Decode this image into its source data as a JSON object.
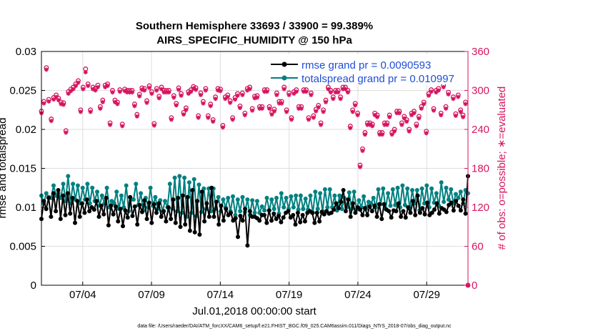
{
  "chart_data": {
    "type": "line",
    "title": "Southern Hemisphere 33693 / 33900 = 99.389%",
    "subtitle": "AIRS_SPECIFIC_HUMIDITY @ 150 hPa",
    "xlabel": "Jul.01,2018 00:00:00 start",
    "ylabel_left": "rmse and totalspread",
    "ylabel_right": "# of obs: o=possible; ∗=evaluated",
    "x_tick_labels": [
      "07/04",
      "07/09",
      "07/14",
      "07/19",
      "07/24",
      "07/29"
    ],
    "x_tick_days": [
      4,
      9,
      14,
      19,
      24,
      29
    ],
    "xlim": [
      1,
      32
    ],
    "ylim_left": [
      0,
      0.03
    ],
    "yticks_left": [
      "0",
      "0.005",
      "0.01",
      "0.015",
      "0.02",
      "0.025",
      "0.03"
    ],
    "ylim_right": [
      0,
      360
    ],
    "yticks_right": [
      "0",
      "60",
      "120",
      "180",
      "240",
      "300",
      "360"
    ],
    "grid": true,
    "legend_position": "top-right",
    "colors": {
      "rmse": "#000000",
      "totalspread": "#008080",
      "obs": "#d6145f",
      "legend_text": "#1f4ed8"
    },
    "series": [
      {
        "name": "rmse grand pr = 0.0090593",
        "axis": "left",
        "values": [
          0.0085,
          0.0108,
          0.0098,
          0.0112,
          0.0088,
          0.0118,
          0.0095,
          0.0122,
          0.0085,
          0.0115,
          0.009,
          0.0118,
          0.0092,
          0.0112,
          0.008,
          0.0108,
          0.0088,
          0.0105,
          0.0093,
          0.011,
          0.0095,
          0.01,
          0.0097,
          0.0108,
          0.0088,
          0.0102,
          0.0091,
          0.0112,
          0.0077,
          0.0102,
          0.0091,
          0.0101,
          0.0082,
          0.0098,
          0.0076,
          0.0096,
          0.0087,
          0.0113,
          0.0089,
          0.0101,
          0.0078,
          0.0103,
          0.0094,
          0.0109,
          0.0085,
          0.0106,
          0.008,
          0.0104,
          0.0093,
          0.0105,
          0.0088,
          0.0095,
          0.0082,
          0.01,
          0.0085,
          0.011,
          0.008,
          0.0112,
          0.0075,
          0.0115,
          0.0078,
          0.0113,
          0.007,
          0.0122,
          0.0068,
          0.0108,
          0.0065,
          0.012,
          0.0082,
          0.0105,
          0.0088,
          0.0125,
          0.0088,
          0.0107,
          0.0078,
          0.0102,
          0.0083,
          0.0098,
          0.009,
          0.0093,
          0.0083,
          0.0086,
          0.0062,
          0.0089,
          0.0083,
          0.0098,
          0.0051,
          0.0095,
          0.0088,
          0.0088,
          0.0086,
          0.0083,
          0.009,
          0.009,
          0.008,
          0.0096,
          0.0083,
          0.0092,
          0.0085,
          0.0089,
          0.0081,
          0.0087,
          0.0093,
          0.0095,
          0.0087,
          0.009,
          0.0078,
          0.0093,
          0.0081,
          0.009,
          0.0082,
          0.0093,
          0.0095,
          0.0093,
          0.008,
          0.0093,
          0.0082,
          0.0094,
          0.0091,
          0.0095,
          0.0092,
          0.0093,
          0.0097,
          0.0105,
          0.0099,
          0.0107,
          0.0122,
          0.0095,
          0.011,
          0.0088,
          0.0105,
          0.0093,
          0.01,
          0.0097,
          0.009,
          0.0099,
          0.009,
          0.0101,
          0.0095,
          0.0102,
          0.0088,
          0.0104,
          0.0085,
          0.0104,
          0.0097,
          0.0095,
          0.0087,
          0.0096,
          0.0095,
          0.0105,
          0.0088,
          0.0095,
          0.0087,
          0.01,
          0.0093,
          0.0108,
          0.009,
          0.0115,
          0.0093,
          0.0099,
          0.0091,
          0.0106,
          0.009,
          0.0093,
          0.0097,
          0.0105,
          0.0092,
          0.0099,
          0.0097,
          0.0094,
          0.0103,
          0.0106,
          0.0096,
          0.0108,
          0.0102,
          0.0096,
          0.011,
          0.0092,
          0.014
        ]
      },
      {
        "name": "totalspread grand pr = 0.010997",
        "axis": "left",
        "values": [
          0.0115,
          0.0105,
          0.0118,
          0.0113,
          0.0112,
          0.0128,
          0.0115,
          0.0118,
          0.0112,
          0.013,
          0.0108,
          0.014,
          0.0105,
          0.013,
          0.011,
          0.0128,
          0.0105,
          0.0125,
          0.011,
          0.013,
          0.0105,
          0.0125,
          0.0108,
          0.012,
          0.0102,
          0.0115,
          0.0105,
          0.0125,
          0.01,
          0.0108,
          0.0105,
          0.012,
          0.0098,
          0.0115,
          0.01,
          0.0128,
          0.0095,
          0.011,
          0.011,
          0.013,
          0.0103,
          0.0118,
          0.0096,
          0.0112,
          0.01,
          0.0125,
          0.0102,
          0.0113,
          0.0098,
          0.0109,
          0.0095,
          0.0108,
          0.01,
          0.013,
          0.0098,
          0.0138,
          0.0095,
          0.014,
          0.0093,
          0.0138,
          0.0088,
          0.0132,
          0.0093,
          0.0136,
          0.0089,
          0.0129,
          0.0094,
          0.0124,
          0.0098,
          0.0124,
          0.0095,
          0.0124,
          0.0098,
          0.0113,
          0.0095,
          0.011,
          0.01,
          0.0112,
          0.0095,
          0.0114,
          0.009,
          0.011,
          0.0095,
          0.0113,
          0.0094,
          0.011,
          0.009,
          0.0109,
          0.0093,
          0.0108,
          0.0093,
          0.0101,
          0.0096,
          0.0112,
          0.0096,
          0.011,
          0.0098,
          0.0112,
          0.0092,
          0.0118,
          0.01,
          0.0112,
          0.0098,
          0.0114,
          0.01,
          0.0115,
          0.0097,
          0.0115,
          0.0098,
          0.0111,
          0.0097,
          0.0115,
          0.0093,
          0.012,
          0.0098,
          0.0118,
          0.0095,
          0.0123,
          0.01,
          0.0123,
          0.01,
          0.0115,
          0.0096,
          0.0115,
          0.0098,
          0.0112,
          0.01,
          0.0119,
          0.0098,
          0.012,
          0.0097,
          0.0109,
          0.01,
          0.0114,
          0.0098,
          0.0107,
          0.0105,
          0.0112,
          0.01,
          0.0123,
          0.0104,
          0.0124,
          0.0098,
          0.0118,
          0.0102,
          0.0123,
          0.0103,
          0.0125,
          0.01,
          0.0128,
          0.0103,
          0.0124,
          0.0098,
          0.0122,
          0.0105,
          0.0122,
          0.0096,
          0.0124,
          0.0105,
          0.0128,
          0.01,
          0.0124,
          0.0106,
          0.0118,
          0.0102,
          0.0132,
          0.0107,
          0.0125,
          0.011,
          0.0123,
          0.0105,
          0.0117,
          0.0112,
          0.012,
          0.0105,
          0.0122,
          0.0118
        ]
      },
      {
        "name": "# of obs possible",
        "axis": "right",
        "marker": "o",
        "values": [
          268,
          283,
          335,
          286,
          256,
          289,
          293,
          288,
          282,
          281,
          238,
          298,
          302,
          305,
          310,
          315,
          270,
          305,
          333,
          310,
          270,
          305,
          303,
          308,
          275,
          285,
          308,
          310,
          250,
          300,
          285,
          282,
          301,
          248,
          302,
          300,
          300,
          300,
          279,
          263,
          294,
          304,
          303,
          284,
          307,
          298,
          249,
          303,
          291,
          305,
          300,
          300,
          300,
          258,
          292,
          280,
          304,
          295,
          266,
          273,
          298,
          301,
          306,
          304,
          261,
          296,
          283,
          303,
          261,
          279,
          255,
          290,
          303,
          302,
          246,
          290,
          293,
          284,
          258,
          289,
          295,
          276,
          296,
          265,
          303,
          305,
          272,
          291,
          292,
          275,
          275,
          301,
          301,
          275,
          266,
          271,
          296,
          283,
          283,
          305,
          270,
          296,
          258,
          298,
          301,
          275,
          275,
          301,
          301,
          258,
          296,
          261,
          271,
          277,
          250,
          270,
          285,
          305,
          300,
          290,
          300,
          300,
          290,
          305,
          305,
          300,
          245,
          270,
          280,
          265,
          185,
          210,
          235,
          250,
          250,
          248,
          265,
          262,
          235,
          235,
          250,
          250,
          262,
          235,
          240,
          268,
          268,
          250,
          260,
          255,
          240,
          265,
          268,
          248,
          260,
          275,
          282,
          237,
          295,
          301,
          272,
          300,
          303,
          265,
          308,
          275,
          297,
          327,
          290,
          264,
          293,
          270,
          262,
          282,
          0
        ]
      },
      {
        "name": "# of obs evaluated",
        "axis": "right",
        "marker": "*",
        "values": [
          265,
          280,
          332,
          283,
          253,
          286,
          290,
          285,
          279,
          278,
          235,
          295,
          299,
          302,
          307,
          312,
          267,
          302,
          328,
          307,
          267,
          302,
          300,
          305,
          272,
          282,
          305,
          307,
          247,
          297,
          282,
          279,
          298,
          245,
          299,
          297,
          297,
          297,
          276,
          260,
          291,
          301,
          300,
          281,
          304,
          295,
          246,
          300,
          288,
          302,
          297,
          297,
          297,
          255,
          289,
          277,
          301,
          292,
          263,
          270,
          295,
          298,
          303,
          301,
          258,
          293,
          280,
          300,
          258,
          276,
          252,
          287,
          300,
          299,
          243,
          287,
          290,
          281,
          255,
          286,
          292,
          273,
          293,
          262,
          300,
          302,
          269,
          288,
          289,
          272,
          272,
          298,
          298,
          272,
          263,
          268,
          293,
          280,
          280,
          302,
          267,
          293,
          255,
          295,
          298,
          272,
          272,
          298,
          298,
          255,
          293,
          258,
          268,
          274,
          247,
          267,
          282,
          302,
          297,
          287,
          297,
          297,
          287,
          302,
          302,
          297,
          242,
          267,
          277,
          262,
          182,
          207,
          232,
          247,
          247,
          245,
          262,
          259,
          232,
          232,
          247,
          247,
          259,
          232,
          237,
          265,
          265,
          247,
          257,
          252,
          237,
          262,
          265,
          245,
          257,
          272,
          279,
          234,
          292,
          298,
          269,
          297,
          300,
          262,
          305,
          272,
          294,
          322,
          287,
          261,
          290,
          267,
          259,
          279,
          0
        ]
      }
    ],
    "legend": [
      "rmse grand pr = 0.0090593",
      "totalspread grand pr = 0.010997"
    ]
  },
  "footer": {
    "data_file": "data file: /Users/raeder/DAI/ATM_forcXX/CAM6_setup/f.e21.FHIST_BGC.f09_025.CAM6assim.011/Diags_NTrS_2018-07/obs_diag_output.nc"
  }
}
